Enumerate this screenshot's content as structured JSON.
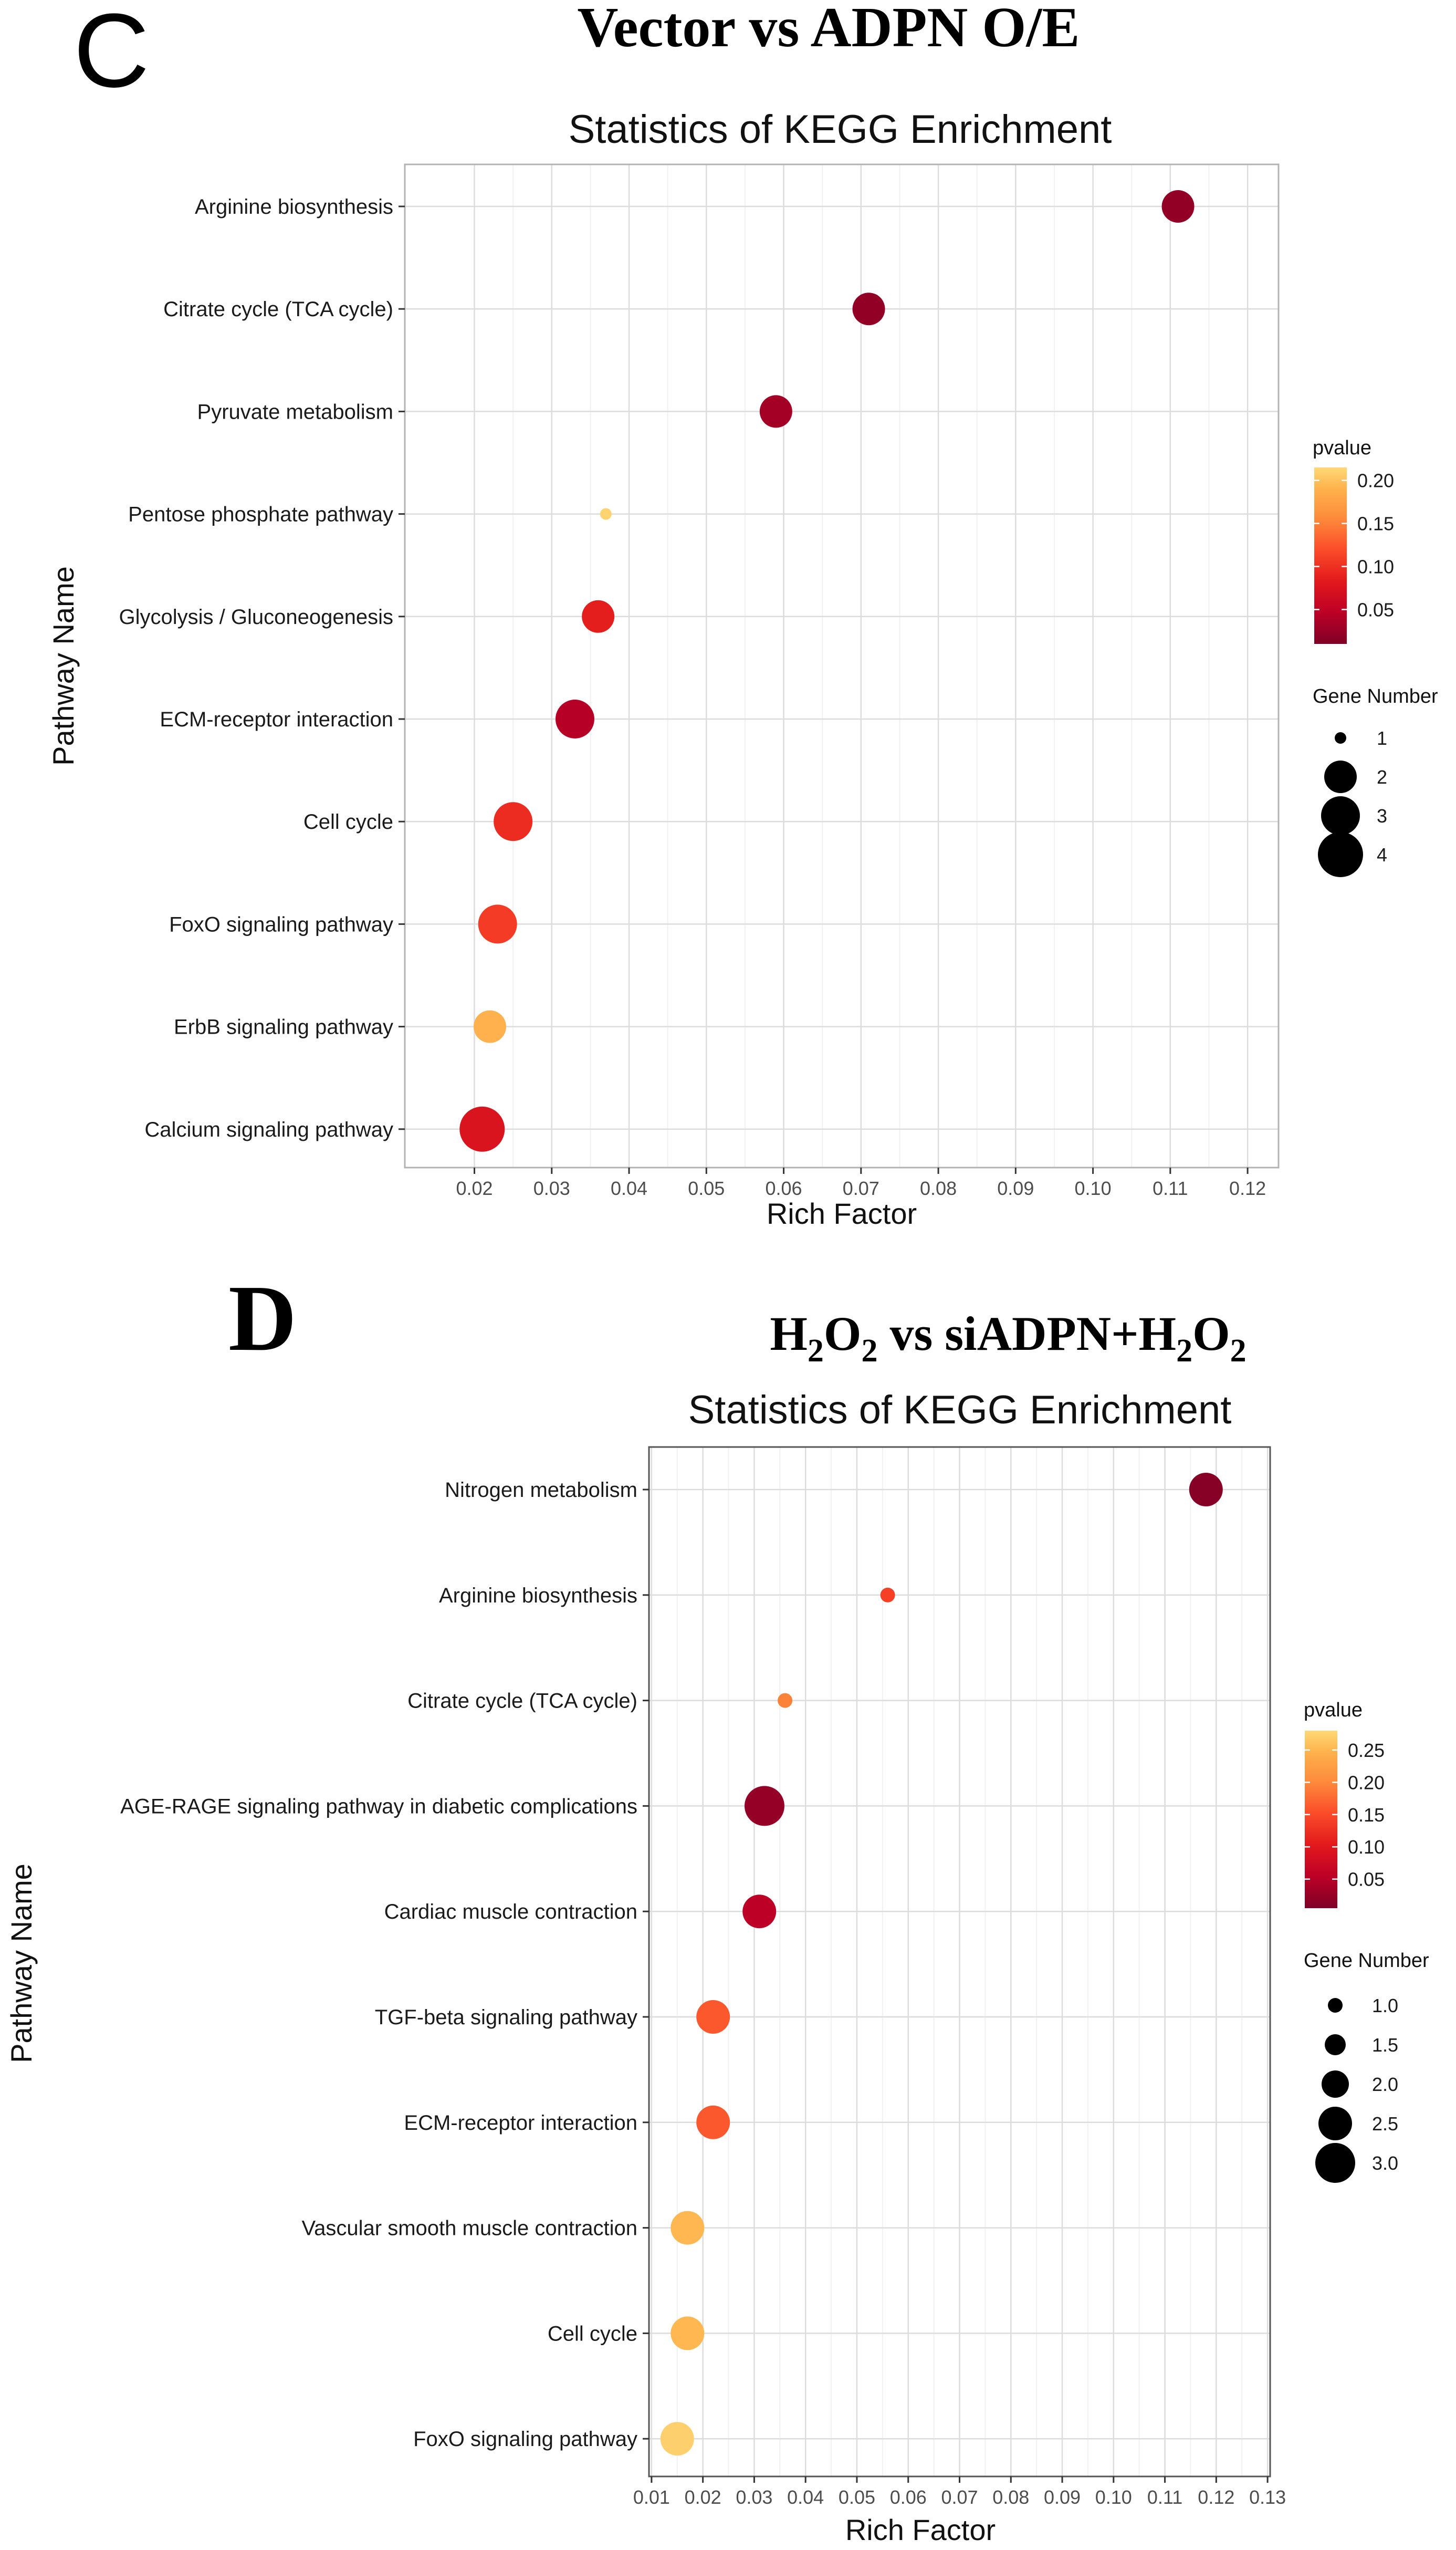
{
  "panels": [
    {
      "letter": "C",
      "heading": "Vector vs ADPN O/E"
    },
    {
      "letter": "D",
      "heading": {
        "p1": "H",
        "s1": "2",
        "p2": "O",
        "s2": "2",
        "p3": " vs siADPN+H",
        "s3": "2",
        "p4": "O",
        "s4": "2"
      }
    }
  ],
  "chart_data": [
    {
      "type": "scatter",
      "title": "Statistics of KEGG Enrichment",
      "xlabel": "Rich Factor",
      "ylabel": "Pathway Name",
      "xlim": [
        0.011,
        0.124
      ],
      "xticks": [
        0.02,
        0.03,
        0.04,
        0.05,
        0.06,
        0.07,
        0.08,
        0.09,
        0.1,
        0.11,
        0.12
      ],
      "xtick_labels": [
        "0.02",
        "0.03",
        "0.04",
        "0.05",
        "0.06",
        "0.07",
        "0.08",
        "0.09",
        "0.10",
        "0.11",
        "0.12"
      ],
      "grid": true,
      "categories": [
        "Arginine biosynthesis",
        "Citrate cycle (TCA cycle)",
        "Pyruvate metabolism",
        "Pentose phosphate pathway",
        "Glycolysis / Gluconeogenesis",
        "ECM-receptor interaction",
        "Cell cycle",
        "FoxO signaling pathway",
        "ErbB signaling pathway",
        "Calcium signaling pathway"
      ],
      "rich_factor": [
        0.111,
        0.071,
        0.059,
        0.037,
        0.036,
        0.033,
        0.025,
        0.023,
        0.022,
        0.021
      ],
      "pvalue": [
        0.02,
        0.02,
        0.03,
        0.21,
        0.08,
        0.04,
        0.09,
        0.1,
        0.18,
        0.07
      ],
      "gene_number": [
        2,
        2,
        2,
        1,
        2,
        3,
        3,
        3,
        2,
        4
      ],
      "color_legend": {
        "title": "pvalue",
        "range": [
          0.01,
          0.215
        ],
        "ticks": [
          0.05,
          0.1,
          0.15,
          0.2
        ],
        "tick_labels": [
          "0.05",
          "0.10",
          "0.15",
          "0.20"
        ]
      },
      "size_legend": {
        "title": "Gene Number",
        "values": [
          1,
          2,
          3,
          4
        ],
        "labels": [
          "1",
          "2",
          "3",
          "4"
        ]
      },
      "colors": [
        "#800026",
        "#bd0026",
        "#e31a1c",
        "#fc4e2a",
        "#fd8d3c",
        "#feb24c",
        "#fed976"
      ]
    },
    {
      "type": "scatter",
      "title": "Statistics of KEGG Enrichment",
      "xlabel": "Rich Factor",
      "ylabel": "Pathway Name",
      "xlim": [
        0.0095,
        0.1305
      ],
      "xticks": [
        0.01,
        0.02,
        0.03,
        0.04,
        0.05,
        0.06,
        0.07,
        0.08,
        0.09,
        0.1,
        0.11,
        0.12,
        0.13
      ],
      "xtick_labels": [
        "0.01",
        "0.02",
        "0.03",
        "0.04",
        "0.05",
        "0.06",
        "0.07",
        "0.08",
        "0.09",
        "0.10",
        "0.11",
        "0.12",
        "0.13"
      ],
      "grid": true,
      "categories": [
        "Nitrogen metabolism",
        "Arginine biosynthesis",
        "Citrate cycle (TCA cycle)",
        "AGE-RAGE signaling pathway in diabetic complications",
        "Cardiac muscle contraction",
        "TGF-beta signaling pathway",
        "ECM-receptor interaction",
        "Vascular smooth muscle contraction",
        "Cell cycle",
        "FoxO signaling pathway"
      ],
      "rich_factor": [
        0.118,
        0.056,
        0.036,
        0.032,
        0.031,
        0.022,
        0.022,
        0.017,
        0.017,
        0.015
      ],
      "pvalue": [
        0.01,
        0.13,
        0.18,
        0.02,
        0.05,
        0.15,
        0.15,
        0.24,
        0.24,
        0.27
      ],
      "gene_number": [
        2.5,
        1.0,
        1.0,
        3.0,
        2.5,
        2.5,
        2.5,
        2.5,
        2.5,
        2.5
      ],
      "color_legend": {
        "title": "pvalue",
        "range": [
          0.005,
          0.28
        ],
        "ticks": [
          0.05,
          0.1,
          0.15,
          0.2,
          0.25
        ],
        "tick_labels": [
          "0.05",
          "0.10",
          "0.15",
          "0.20",
          "0.25"
        ]
      },
      "size_legend": {
        "title": "Gene Number",
        "values": [
          1.0,
          1.5,
          2.0,
          2.5,
          3.0
        ],
        "labels": [
          "1.0",
          "1.5",
          "2.0",
          "2.5",
          "3.0"
        ]
      },
      "colors": [
        "#800026",
        "#bd0026",
        "#e31a1c",
        "#fc4e2a",
        "#fd8d3c",
        "#feb24c",
        "#fed976"
      ]
    }
  ]
}
